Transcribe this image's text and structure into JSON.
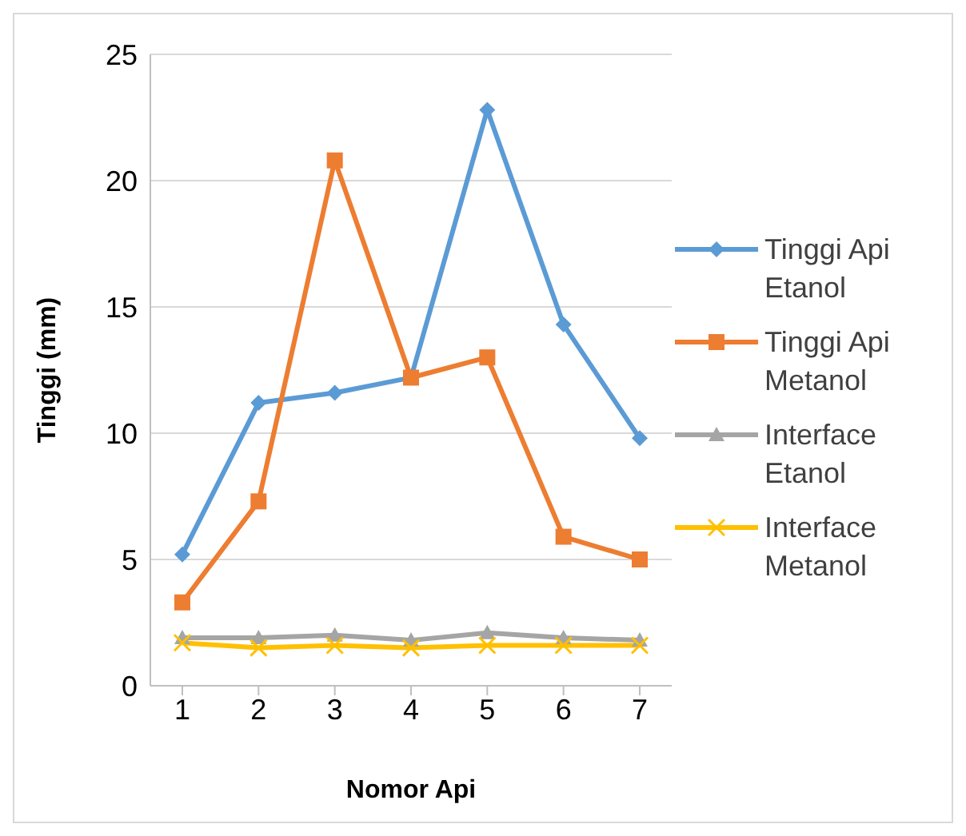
{
  "chart_data": {
    "type": "line",
    "xlabel": "Nomor Api",
    "ylabel": "Tinggi (mm)",
    "categories": [
      "1",
      "2",
      "3",
      "4",
      "5",
      "6",
      "7"
    ],
    "series": [
      {
        "name": "Tinggi Api Etanol",
        "color": "#5b9bd5",
        "marker": "diamond",
        "values": [
          5.2,
          11.2,
          11.6,
          12.2,
          22.8,
          14.3,
          9.8
        ]
      },
      {
        "name": "Tinggi Api Metanol",
        "color": "#ed7d31",
        "marker": "square",
        "values": [
          3.3,
          7.3,
          20.8,
          12.2,
          13.0,
          5.9,
          5.0
        ]
      },
      {
        "name": "Interface Etanol",
        "color": "#a5a5a5",
        "marker": "triangle",
        "values": [
          1.9,
          1.9,
          2.0,
          1.8,
          2.1,
          1.9,
          1.8
        ]
      },
      {
        "name": "Interface Metanol",
        "color": "#ffc000",
        "marker": "cross",
        "values": [
          1.7,
          1.5,
          1.6,
          1.5,
          1.6,
          1.6,
          1.6
        ]
      }
    ],
    "ylim": [
      0,
      25
    ],
    "yticks": [
      0,
      5,
      10,
      15,
      20,
      25
    ],
    "grid": "y",
    "legend": "right"
  }
}
